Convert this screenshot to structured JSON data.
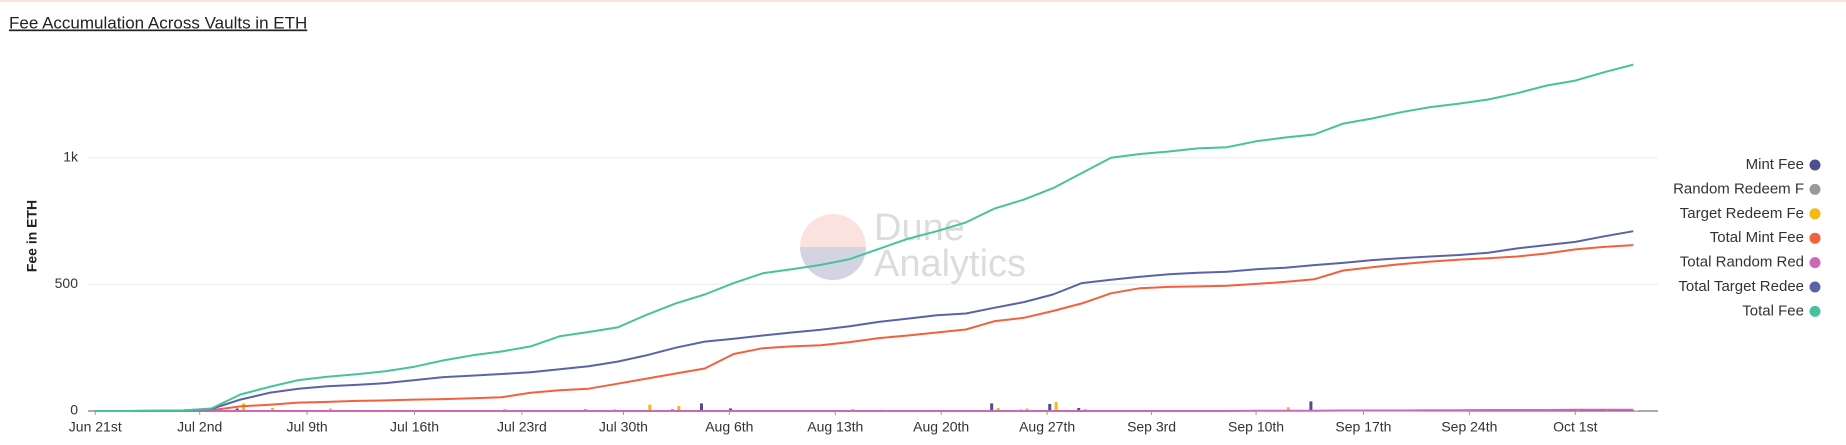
{
  "chart_data": {
    "type": "line",
    "title": "Fee Accumulation Across Vaults in ETH",
    "ylabel": "Fee in ETH",
    "watermark": [
      "Dune",
      "Analytics"
    ],
    "x": [
      0,
      2,
      4,
      6,
      8,
      10,
      12,
      14,
      16,
      18,
      20,
      22,
      24,
      26,
      28,
      30,
      32,
      34,
      36,
      38,
      40,
      42,
      44,
      46,
      48,
      50,
      52,
      54,
      56,
      58,
      60,
      62,
      64,
      66,
      68,
      70,
      72,
      74,
      76,
      78,
      80,
      82,
      84,
      86,
      88,
      90,
      92,
      94,
      96,
      98,
      100,
      102,
      104,
      106
    ],
    "xlim": [
      -0.5,
      107.7
    ],
    "xticks": [
      {
        "value": 0,
        "label": "Jun 21st"
      },
      {
        "value": 7.2,
        "label": "Jul 2nd"
      },
      {
        "value": 14.6,
        "label": "Jul 9th"
      },
      {
        "value": 22,
        "label": "Jul 16th"
      },
      {
        "value": 29.4,
        "label": "Jul 23rd"
      },
      {
        "value": 36.4,
        "label": "Jul 30th"
      },
      {
        "value": 43.7,
        "label": "Aug 6th"
      },
      {
        "value": 51,
        "label": "Aug 13th"
      },
      {
        "value": 58.3,
        "label": "Aug 20th"
      },
      {
        "value": 65.6,
        "label": "Aug 27th"
      },
      {
        "value": 72.8,
        "label": "Sep 3rd"
      },
      {
        "value": 80,
        "label": "Sep 10th"
      },
      {
        "value": 87.4,
        "label": "Sep 17th"
      },
      {
        "value": 94.7,
        "label": "Sep 24th"
      },
      {
        "value": 102,
        "label": "Oct 1st"
      }
    ],
    "ylim": [
      0,
      1400
    ],
    "yticks": [
      0,
      500,
      {
        "value": 1000,
        "label": "1k"
      }
    ],
    "grid": true,
    "legend": "right",
    "series": [
      {
        "name": "Mint Fee",
        "type": "bar",
        "color": "#4b4e8f",
        "values": [
          0,
          0,
          0,
          0,
          5,
          10,
          3,
          2,
          2,
          3,
          2,
          2,
          2,
          3,
          2,
          3,
          4,
          6,
          5,
          4,
          6,
          30,
          10,
          4,
          3,
          2,
          3,
          2,
          3,
          4,
          2,
          30,
          5,
          28,
          12,
          2,
          1,
          1,
          2,
          2,
          1,
          3,
          38,
          3,
          2,
          3,
          2,
          1,
          2,
          3,
          4,
          5,
          5,
          4
        ]
      },
      {
        "name": "Random Redeem F",
        "type": "bar",
        "color": "#9a9a9a",
        "values": [
          0,
          0,
          0,
          0,
          0,
          0,
          0,
          0,
          0,
          0,
          0,
          0,
          0,
          0,
          0,
          0,
          0,
          0,
          0,
          0,
          0,
          0,
          0,
          0,
          0,
          0,
          0,
          0,
          0,
          0,
          0,
          0,
          0,
          0,
          0,
          0,
          0,
          0,
          0,
          0,
          0,
          0,
          0,
          0,
          0,
          0,
          0,
          0,
          0,
          0,
          0,
          0,
          0,
          0
        ]
      },
      {
        "name": "Target Redeem Fe",
        "type": "bar",
        "color": "#f5b910",
        "values": [
          0,
          0,
          0,
          0,
          2,
          30,
          12,
          3,
          10,
          2,
          5,
          3,
          4,
          2,
          8,
          2,
          3,
          2,
          4,
          25,
          20,
          3,
          2,
          3,
          4,
          2,
          8,
          5,
          3,
          2,
          2,
          12,
          10,
          35,
          8,
          4,
          2,
          1,
          2,
          1,
          1,
          15,
          2,
          3,
          1,
          2,
          1,
          1,
          2,
          1,
          2,
          2,
          3,
          2
        ]
      },
      {
        "name": "Total Mint Fee",
        "type": "line",
        "color": "#f4603e",
        "values": [
          0,
          0,
          0,
          0,
          3,
          18,
          25,
          33,
          36,
          40,
          42,
          45,
          47,
          50,
          54,
          72,
          82,
          88,
          108,
          128,
          148,
          168,
          225,
          248,
          255,
          260,
          272,
          288,
          298,
          310,
          322,
          355,
          368,
          395,
          425,
          465,
          485,
          490,
          492,
          495,
          502,
          510,
          520,
          555,
          568,
          580,
          590,
          598,
          603,
          610,
          622,
          638,
          648,
          655
        ]
      },
      {
        "name": "Total Random Red",
        "type": "line",
        "color": "#d066b6",
        "values": [
          0,
          0,
          0,
          0,
          0,
          0,
          0,
          0,
          0,
          0,
          0,
          0,
          0,
          0,
          0,
          0,
          0,
          0,
          0,
          0,
          0,
          0,
          0,
          0,
          0,
          0,
          0,
          0,
          0,
          0,
          0,
          0,
          0,
          0,
          0,
          0,
          0,
          0,
          0,
          0,
          1,
          1,
          1,
          2,
          2,
          2,
          3,
          3,
          4,
          4,
          4,
          5,
          5,
          5
        ]
      },
      {
        "name": "Total Target Redee",
        "type": "line",
        "color": "#5a63a8",
        "values": [
          0,
          0,
          1,
          2,
          8,
          45,
          72,
          88,
          98,
          103,
          110,
          122,
          134,
          140,
          146,
          153,
          165,
          177,
          195,
          220,
          250,
          274,
          285,
          298,
          310,
          321,
          335,
          352,
          365,
          378,
          385,
          408,
          430,
          460,
          505,
          518,
          530,
          540,
          546,
          550,
          560,
          566,
          576,
          585,
          596,
          604,
          610,
          616,
          625,
          642,
          655,
          668,
          690,
          710
        ]
      },
      {
        "name": "Total Fee",
        "type": "line",
        "color": "#46c29c",
        "values": [
          0,
          0,
          1,
          2,
          10,
          65,
          95,
          122,
          135,
          145,
          157,
          175,
          200,
          220,
          235,
          255,
          295,
          312,
          330,
          380,
          425,
          460,
          505,
          544,
          560,
          577,
          600,
          640,
          680,
          710,
          745,
          800,
          835,
          880,
          940,
          1000,
          1015,
          1025,
          1037,
          1042,
          1065,
          1080,
          1092,
          1135,
          1155,
          1180,
          1200,
          1214,
          1230,
          1255,
          1285,
          1305,
          1338,
          1368
        ]
      }
    ]
  }
}
